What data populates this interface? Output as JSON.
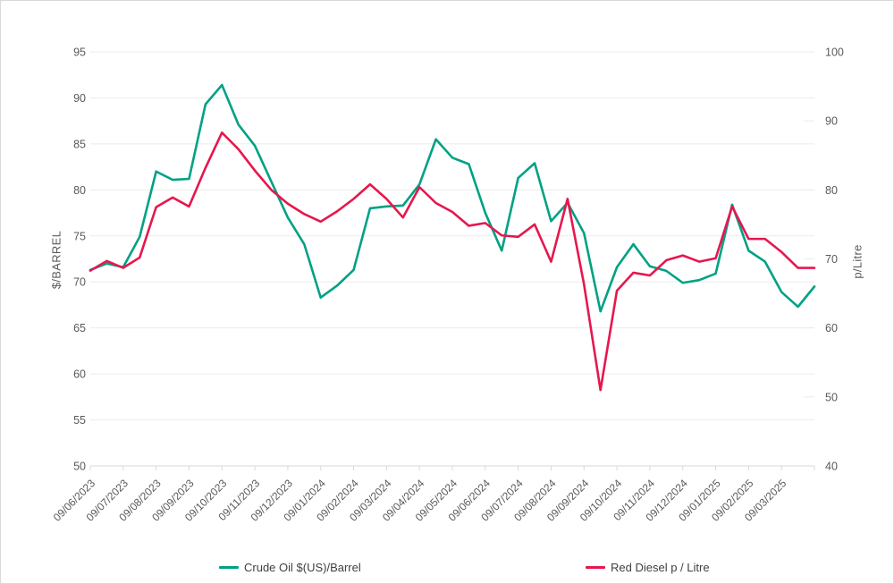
{
  "chart": {
    "left_axis_title": "$/BARREL",
    "right_axis_title": "p/Litre",
    "legend_crude_label": "Crude Oil $(US)/Barrel",
    "legend_diesel_label": "Red Diesel p / Litre"
  },
  "chart_data": {
    "type": "line",
    "title": "",
    "grid": true,
    "legend_position": "bottom",
    "points_per_tick": 2,
    "x_tick_labels": [
      "09/06/2023",
      "09/07/2023",
      "09/08/2023",
      "09/09/2023",
      "09/10/2023",
      "09/11/2023",
      "09/12/2023",
      "09/01/2024",
      "09/02/2024",
      "09/03/2024",
      "09/04/2024",
      "09/05/2024",
      "09/06/2024",
      "09/07/2024",
      "09/08/2024",
      "09/09/2024",
      "09/10/2024",
      "09/11/2024",
      "09/12/2024",
      "09/01/2025",
      "09/02/2025",
      "09/03/2025"
    ],
    "left_axis": {
      "label": "$/BARREL",
      "min": 50,
      "max": 95,
      "step": 5
    },
    "right_axis": {
      "label": "p/Litre",
      "min": 40,
      "max": 100,
      "step": 10
    },
    "colors": {
      "crude": "#00a184",
      "diesel": "#e6174e",
      "grid": "#ececec",
      "axis_line": "#d9d9d9",
      "tick_text": "#595959"
    },
    "series": [
      {
        "name": "Crude Oil $(US)/Barrel",
        "axis": "left",
        "color": "#00a184",
        "values": [
          71.3,
          72.0,
          71.6,
          74.9,
          82.0,
          81.1,
          81.2,
          89.3,
          91.4,
          87.1,
          84.8,
          80.9,
          77.0,
          74.1,
          68.3,
          69.6,
          71.3,
          78.0,
          78.2,
          78.3,
          80.6,
          85.5,
          83.5,
          82.8,
          77.5,
          73.4,
          81.3,
          82.9,
          76.6,
          78.6,
          75.3,
          66.8,
          71.6,
          74.1,
          71.7,
          71.2,
          69.9,
          70.2,
          70.9,
          78.4,
          73.4,
          72.2,
          68.9,
          67.3,
          69.5
        ]
      },
      {
        "name": "Red Diesel p / Litre",
        "axis": "right",
        "color": "#e6174e",
        "values": [
          68.3,
          69.7,
          68.7,
          70.2,
          77.5,
          78.9,
          77.6,
          83.2,
          88.3,
          85.9,
          82.8,
          80.0,
          78.0,
          76.5,
          75.4,
          76.9,
          78.7,
          80.8,
          78.7,
          76.0,
          80.4,
          78.1,
          76.8,
          74.8,
          75.2,
          73.4,
          73.2,
          75.0,
          69.6,
          78.7,
          66.3,
          51.0,
          65.4,
          68.0,
          67.6,
          69.8,
          70.5,
          69.6,
          70.1,
          77.6,
          72.9,
          72.9,
          71.0,
          68.7,
          68.7
        ]
      }
    ]
  }
}
